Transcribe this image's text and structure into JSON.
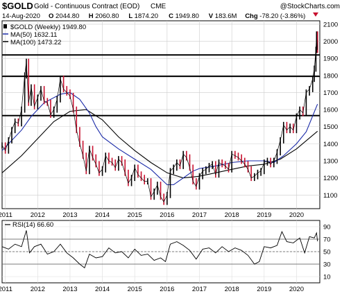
{
  "header": {
    "symbol": "$GOLD",
    "name": "Gold - Continuous Contract (EOD)",
    "exchange": "CME",
    "watermark": "@StockCharts.com",
    "date": "14-Aug-2020",
    "stats": [
      {
        "k": "O",
        "v": "2044.80"
      },
      {
        "k": "H",
        "v": "2060.80"
      },
      {
        "k": "L",
        "v": "1874.20"
      },
      {
        "k": "C",
        "v": "1949.80"
      },
      {
        "k": "V",
        "v": "183.6M"
      },
      {
        "k": "Chg",
        "v": "-78.20 (-3.86%)"
      }
    ]
  },
  "legend": [
    {
      "label": "$GOLD (Weekly) 1949.80",
      "color": "#000000",
      "marker": "line"
    },
    {
      "label": "MA(50) 1632.11",
      "color": "#1a2aa8",
      "marker": "line"
    },
    {
      "label": "MA(100) 1473.22",
      "color": "#000000",
      "marker": "line"
    }
  ],
  "rsi_label": "RSI(14) 66.60",
  "colors": {
    "up": "#000000",
    "down": "#c8102e",
    "ma50": "#1a2aa8",
    "ma100": "#000000",
    "rsi": "#000000"
  },
  "chart_data": [
    {
      "type": "line",
      "title": "Gold - Continuous Contract (EOD)",
      "x_tick_labels": [
        "2011",
        "2012",
        "2013",
        "2014",
        "2015",
        "2016",
        "2017",
        "2018",
        "2019",
        "2020"
      ],
      "y_tick_labels": [
        "1100",
        "1200",
        "1300",
        "1400",
        "1500",
        "1600",
        "1700",
        "1800",
        "1900",
        "2000",
        "2100"
      ],
      "ylim": [
        1020,
        2120
      ],
      "xlim": [
        2010.9,
        2020.72
      ],
      "horizontal_lines": [
        1920,
        1795,
        1565
      ],
      "series": [
        {
          "name": "$GOLD (Weekly)",
          "type": "ohlc",
          "x": [
            2010.9,
            2011.0,
            2011.1,
            2011.2,
            2011.3,
            2011.4,
            2011.5,
            2011.6,
            2011.65,
            2011.72,
            2011.8,
            2011.9,
            2012.0,
            2012.1,
            2012.2,
            2012.3,
            2012.4,
            2012.5,
            2012.6,
            2012.7,
            2012.8,
            2012.9,
            2013.0,
            2013.1,
            2013.2,
            2013.3,
            2013.4,
            2013.5,
            2013.6,
            2013.7,
            2013.8,
            2013.9,
            2014.0,
            2014.1,
            2014.2,
            2014.3,
            2014.4,
            2014.5,
            2014.6,
            2014.7,
            2014.8,
            2014.9,
            2015.0,
            2015.1,
            2015.2,
            2015.3,
            2015.4,
            2015.5,
            2015.6,
            2015.7,
            2015.8,
            2015.9,
            2016.0,
            2016.1,
            2016.2,
            2016.3,
            2016.4,
            2016.5,
            2016.6,
            2016.7,
            2016.8,
            2016.9,
            2017.0,
            2017.1,
            2017.2,
            2017.3,
            2017.4,
            2017.5,
            2017.6,
            2017.7,
            2017.8,
            2017.9,
            2018.0,
            2018.1,
            2018.2,
            2018.3,
            2018.4,
            2018.5,
            2018.6,
            2018.7,
            2018.8,
            2018.9,
            2019.0,
            2019.1,
            2019.2,
            2019.3,
            2019.4,
            2019.5,
            2019.6,
            2019.7,
            2019.8,
            2019.9,
            2020.0,
            2020.1,
            2020.2,
            2020.3,
            2020.4,
            2020.5,
            2020.55,
            2020.6,
            2020.62,
            2020.65
          ],
          "y": [
            1390,
            1360,
            1420,
            1480,
            1530,
            1520,
            1600,
            1800,
            1880,
            1640,
            1730,
            1620,
            1670,
            1720,
            1650,
            1640,
            1570,
            1600,
            1660,
            1780,
            1720,
            1700,
            1680,
            1600,
            1480,
            1400,
            1330,
            1240,
            1370,
            1320,
            1280,
            1230,
            1250,
            1330,
            1300,
            1290,
            1260,
            1310,
            1290,
            1230,
            1170,
            1200,
            1260,
            1220,
            1200,
            1180,
            1180,
            1090,
            1120,
            1160,
            1090,
            1060,
            1100,
            1240,
            1260,
            1290,
            1270,
            1340,
            1320,
            1260,
            1180,
            1150,
            1210,
            1240,
            1250,
            1270,
            1280,
            1220,
            1290,
            1280,
            1270,
            1250,
            1340,
            1330,
            1320,
            1300,
            1280,
            1250,
            1200,
            1210,
            1230,
            1240,
            1290,
            1300,
            1280,
            1300,
            1350,
            1420,
            1510,
            1480,
            1500,
            1480,
            1560,
            1600,
            1580,
            1700,
            1720,
            1780,
            1840,
            1950,
            2040,
            1949.8
          ]
        },
        {
          "name": "MA(50)",
          "x": [
            2010.9,
            2011.5,
            2011.8,
            2012.2,
            2012.7,
            2013.0,
            2013.3,
            2013.6,
            2013.8,
            2014.0,
            2014.5,
            2015.0,
            2015.5,
            2016.0,
            2016.2,
            2016.5,
            2016.8,
            2017.0,
            2017.5,
            2018.0,
            2018.5,
            2019.0,
            2019.3,
            2019.6,
            2020.0,
            2020.3,
            2020.65
          ],
          "y": [
            1360,
            1480,
            1560,
            1640,
            1690,
            1700,
            1660,
            1580,
            1500,
            1440,
            1370,
            1310,
            1250,
            1160,
            1160,
            1200,
            1240,
            1255,
            1270,
            1290,
            1300,
            1300,
            1290,
            1330,
            1400,
            1470,
            1632.11
          ]
        },
        {
          "name": "MA(100)",
          "x": [
            2010.9,
            2011.5,
            2012.0,
            2012.5,
            2013.0,
            2013.5,
            2014.0,
            2014.5,
            2015.0,
            2015.5,
            2016.0,
            2016.5,
            2017.0,
            2017.5,
            2018.0,
            2018.5,
            2019.0,
            2019.5,
            2020.0,
            2020.65
          ],
          "y": [
            1230,
            1330,
            1430,
            1530,
            1590,
            1600,
            1540,
            1440,
            1360,
            1290,
            1230,
            1200,
            1210,
            1230,
            1250,
            1270,
            1280,
            1310,
            1370,
            1473.22
          ]
        }
      ]
    },
    {
      "type": "line",
      "title": "RSI(14)",
      "x_tick_labels": [
        "2011",
        "2012",
        "2013",
        "2014",
        "2015",
        "2016",
        "2017",
        "2018",
        "2019",
        "2020"
      ],
      "y_tick_labels": [
        "10",
        "30",
        "50",
        "70",
        "90"
      ],
      "ylim": [
        0,
        100
      ],
      "reference_lines": [
        70,
        50,
        30
      ],
      "series": [
        {
          "name": "RSI(14)",
          "x": [
            2010.9,
            2011.1,
            2011.3,
            2011.5,
            2011.65,
            2011.75,
            2011.9,
            2012.1,
            2012.3,
            2012.5,
            2012.7,
            2012.9,
            2013.1,
            2013.3,
            2013.45,
            2013.6,
            2013.8,
            2014.0,
            2014.2,
            2014.4,
            2014.6,
            2014.8,
            2015.0,
            2015.2,
            2015.4,
            2015.6,
            2015.8,
            2015.95,
            2016.1,
            2016.3,
            2016.5,
            2016.7,
            2016.9,
            2017.1,
            2017.3,
            2017.5,
            2017.7,
            2017.9,
            2018.1,
            2018.3,
            2018.5,
            2018.7,
            2018.85,
            2019.0,
            2019.2,
            2019.4,
            2019.55,
            2019.7,
            2019.9,
            2020.1,
            2020.25,
            2020.4,
            2020.55,
            2020.62,
            2020.65
          ],
          "y": [
            58,
            54,
            62,
            58,
            84,
            48,
            58,
            62,
            46,
            50,
            62,
            48,
            40,
            30,
            24,
            46,
            40,
            42,
            56,
            48,
            50,
            40,
            54,
            44,
            46,
            36,
            40,
            34,
            62,
            66,
            60,
            52,
            38,
            54,
            56,
            48,
            58,
            50,
            56,
            52,
            44,
            30,
            34,
            58,
            56,
            60,
            82,
            66,
            64,
            72,
            48,
            74,
            72,
            80,
            66.6
          ]
        }
      ]
    }
  ]
}
